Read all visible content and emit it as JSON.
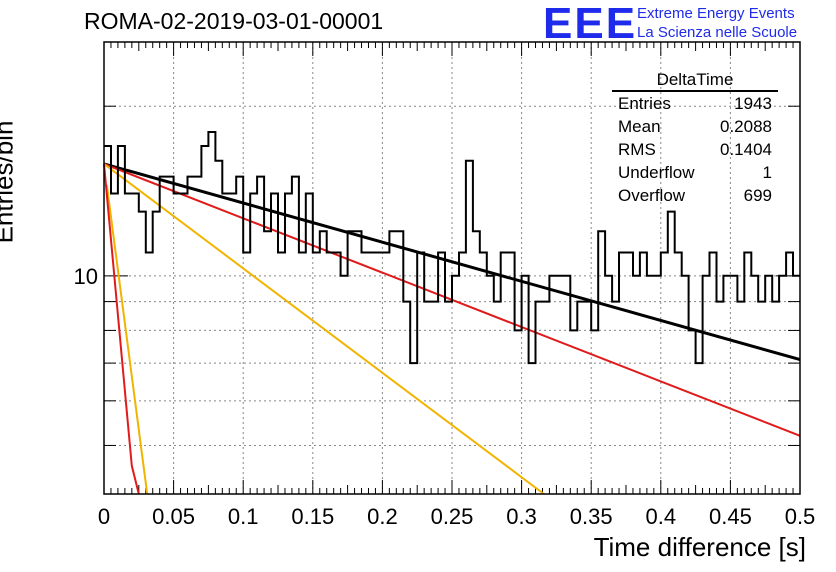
{
  "title": "ROMA-02-2019-03-01-00001",
  "logo": {
    "mark": "EEE",
    "line1": "Extreme Energy Events",
    "line2": "La Scienza nelle Scuole",
    "color": "#1f2bea"
  },
  "stats": {
    "header": "DeltaTime",
    "rows": [
      {
        "label": "Entries",
        "value": "1943"
      },
      {
        "label": "Mean",
        "value": "0.2088"
      },
      {
        "label": "RMS",
        "value": "0.1404"
      },
      {
        "label": "Underflow",
        "value": "1"
      },
      {
        "label": "Overflow",
        "value": "699"
      }
    ]
  },
  "chart_data": {
    "type": "line",
    "title": "ROMA-02-2019-03-01-00001",
    "xlabel": "Time difference [s]",
    "ylabel": "Entries/bin",
    "xlim": [
      0,
      0.5
    ],
    "ylim": [
      4.1,
      26
    ],
    "log_y": true,
    "grid": true,
    "x_ticks": [
      "0",
      "0.05",
      "0.1",
      "0.15",
      "0.2",
      "0.25",
      "0.3",
      "0.35",
      "0.4",
      "0.45",
      "0.5"
    ],
    "y_ticks": [
      "10"
    ],
    "histogram": {
      "name": "DeltaTime",
      "color": "#000000",
      "bin_width": 0.005,
      "values": [
        17,
        14,
        17,
        14,
        14,
        13,
        11,
        13,
        15,
        15,
        14,
        14,
        15,
        15,
        17,
        18,
        16,
        14,
        14,
        15,
        11,
        14,
        15,
        12,
        14,
        11,
        14,
        15,
        11,
        14,
        11,
        12,
        11,
        11,
        10,
        12,
        12,
        11,
        11,
        11,
        11,
        12,
        12,
        9,
        7,
        11,
        9,
        9,
        11,
        9,
        10,
        11,
        16,
        12,
        11,
        10,
        9,
        11,
        11,
        8,
        10,
        7,
        9,
        9,
        10,
        10,
        10,
        8,
        9,
        9,
        8,
        12,
        10,
        9,
        11,
        11,
        10,
        11,
        10,
        10,
        11,
        13,
        11,
        10,
        8,
        7,
        10,
        11,
        9,
        10,
        10,
        9,
        11,
        10,
        9,
        10,
        9,
        10,
        11,
        10
      ]
    },
    "series": [
      {
        "color": "#000000",
        "x": [
          0,
          0.5
        ],
        "y": [
          15.8,
          7.1
        ]
      },
      {
        "color": "#e01b1b",
        "x": [
          0,
          0.5
        ],
        "y": [
          15.8,
          5.2
        ]
      },
      {
        "color": "#f0b400",
        "x": [
          0,
          0.316
        ],
        "y": [
          15.8,
          4.1
        ]
      },
      {
        "color": "#f0b400",
        "x": [
          0.002,
          0.031
        ],
        "y": [
          14.5,
          4.1
        ]
      },
      {
        "color": "#e01b1b",
        "x": [
          0,
          0.02,
          0.025
        ],
        "y": [
          15.8,
          4.6,
          4.1
        ]
      }
    ]
  }
}
